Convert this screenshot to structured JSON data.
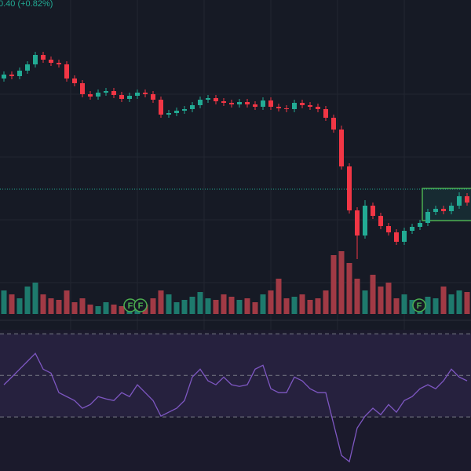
{
  "chart_data": {
    "type": "candlestick",
    "subtitle": "0.40 (+0.82%)",
    "open": [
      500,
      505,
      503,
      510,
      518,
      530,
      524,
      520,
      518,
      500,
      494,
      480,
      477,
      482,
      484,
      479,
      474,
      478,
      482,
      480,
      473,
      454,
      456,
      459,
      461,
      466,
      473,
      475,
      471,
      469,
      467,
      470,
      467,
      464,
      472,
      464,
      462,
      461,
      469,
      466,
      464,
      461,
      450,
      435,
      388,
      332,
      300,
      338,
      325,
      312,
      304,
      292,
      306,
      311,
      316,
      330,
      334,
      331,
      338,
      350
    ],
    "high": [
      509,
      509,
      514,
      522,
      534,
      534,
      528,
      524,
      522,
      504,
      498,
      484,
      486,
      488,
      488,
      483,
      482,
      486,
      486,
      484,
      477,
      460,
      463,
      465,
      470,
      477,
      479,
      479,
      475,
      473,
      474,
      474,
      471,
      476,
      476,
      468,
      466,
      473,
      473,
      470,
      468,
      465,
      454,
      440,
      392,
      336,
      345,
      342,
      329,
      316,
      308,
      310,
      315,
      320,
      334,
      338,
      338,
      342,
      355,
      354
    ],
    "low": [
      496,
      499,
      499,
      506,
      514,
      520,
      516,
      514,
      496,
      490,
      476,
      473,
      473,
      478,
      475,
      470,
      470,
      474,
      476,
      469,
      450,
      450,
      452,
      455,
      457,
      462,
      469,
      467,
      465,
      463,
      463,
      463,
      460,
      460,
      460,
      458,
      457,
      457,
      462,
      460,
      457,
      446,
      431,
      384,
      328,
      270,
      296,
      321,
      308,
      300,
      288,
      288,
      302,
      307,
      312,
      326,
      327,
      327,
      334,
      338
    ],
    "close": [
      505,
      503,
      510,
      518,
      530,
      524,
      520,
      518,
      500,
      494,
      480,
      477,
      482,
      484,
      479,
      474,
      478,
      482,
      480,
      473,
      454,
      456,
      459,
      461,
      466,
      473,
      475,
      471,
      469,
      467,
      470,
      467,
      464,
      472,
      464,
      462,
      461,
      469,
      466,
      464,
      461,
      450,
      435,
      388,
      332,
      300,
      338,
      325,
      312,
      304,
      292,
      306,
      311,
      316,
      330,
      334,
      331,
      338,
      350,
      342
    ],
    "volume": [
      30,
      25,
      20,
      35,
      40,
      25,
      20,
      18,
      30,
      15,
      20,
      12,
      10,
      15,
      12,
      10,
      18,
      15,
      12,
      20,
      30,
      25,
      15,
      18,
      22,
      28,
      20,
      18,
      25,
      22,
      18,
      20,
      15,
      25,
      30,
      45,
      20,
      22,
      25,
      18,
      20,
      30,
      75,
      80,
      65,
      45,
      30,
      50,
      35,
      40,
      20,
      25,
      18,
      15,
      22,
      20,
      35,
      25,
      30,
      28
    ],
    "rsi": [
      45.5,
      49.2,
      53,
      56.8,
      60.6,
      53,
      51.1,
      41.7,
      39.8,
      37.9,
      34.2,
      36,
      39.8,
      38.7,
      37.9,
      41.7,
      39.8,
      45.5,
      41.7,
      37.9,
      30.4,
      32.3,
      34.2,
      37.9,
      49.2,
      53,
      47.4,
      45.5,
      49.2,
      45.5,
      44.7,
      45.5,
      53,
      54.9,
      43.6,
      41.7,
      41.7,
      49.2,
      47.4,
      43.6,
      41.7,
      41.7,
      26.6,
      11.5,
      8.5,
      24.7,
      30.4,
      34.2,
      31.1,
      36,
      32.3,
      37.9,
      39.8,
      43.6,
      45.5,
      43.6,
      47.4,
      53,
      49.2,
      47.4
    ],
    "event_labels": [
      "F",
      "F",
      "F"
    ],
    "price_line": 359,
    "ylim": [
      0,
      600
    ],
    "volume_lim": [
      0,
      100
    ],
    "rsi_lim": [
      4,
      72
    ],
    "rsi_ticks": [
      70,
      50,
      30
    ],
    "up_color": "#22ab94",
    "down_color": "#f23645",
    "volume_up_color": "#1e7a6d",
    "volume_down_color": "#a13a45",
    "rsi_color": "#7e57c2"
  }
}
